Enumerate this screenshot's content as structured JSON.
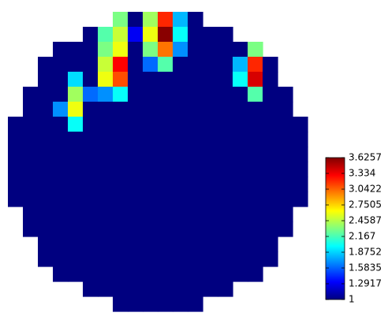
{
  "chart_data": {
    "type": "heatmap",
    "colormap": "jet",
    "z": [
      [
        null,
        null,
        null,
        null,
        null,
        null,
        null,
        2.3,
        1,
        2.4,
        3.2,
        1.8,
        1,
        null,
        null,
        null,
        null,
        null,
        null,
        null
      ],
      [
        null,
        null,
        null,
        null,
        null,
        1,
        2.2,
        2.5,
        1.3,
        2.6,
        3.6,
        2.0,
        1,
        1,
        1,
        null,
        null,
        null,
        null,
        null
      ],
      [
        null,
        null,
        null,
        1,
        1,
        1,
        2.3,
        2.6,
        1,
        2.3,
        3.0,
        1.7,
        1,
        1,
        1,
        1,
        2.3,
        null,
        null,
        null
      ],
      [
        null,
        null,
        1,
        1,
        1,
        1,
        2.5,
        3.3,
        1,
        1.6,
        2.2,
        1,
        1,
        1,
        1,
        1.8,
        3.2,
        1,
        null,
        null
      ],
      [
        null,
        null,
        1,
        1,
        1.9,
        1,
        2.6,
        3.1,
        1,
        1,
        1,
        1,
        1,
        1,
        1,
        2.0,
        3.4,
        1,
        null,
        null
      ],
      [
        null,
        1,
        1,
        1,
        2.4,
        1.6,
        1.7,
        2.0,
        1,
        1,
        1,
        1,
        1,
        1,
        1,
        1,
        2.2,
        1,
        1,
        null
      ],
      [
        null,
        1,
        1,
        1.7,
        2.6,
        1,
        1,
        1,
        1,
        1,
        1,
        1,
        1,
        1,
        1,
        1,
        1,
        1,
        1,
        null
      ],
      [
        1,
        1,
        1,
        1,
        2.0,
        1,
        1,
        1,
        1,
        1,
        1,
        1,
        1,
        1,
        1,
        1,
        1,
        1,
        1,
        1
      ],
      [
        1,
        1,
        1,
        1,
        1,
        1,
        1,
        1,
        1,
        1,
        1,
        1,
        1,
        1,
        1,
        1,
        1,
        1,
        1,
        1
      ],
      [
        1,
        1,
        1,
        1,
        1,
        1,
        1,
        1,
        1,
        1,
        1,
        1,
        1,
        1,
        1,
        1,
        1,
        1,
        1,
        1
      ],
      [
        1,
        1,
        1,
        1,
        1,
        1,
        1,
        1,
        1,
        1,
        1,
        1,
        1,
        1,
        1,
        1,
        1,
        1,
        1,
        1
      ],
      [
        1,
        1,
        1,
        1,
        1,
        1,
        1,
        1,
        1,
        1,
        1,
        1,
        1,
        1,
        1,
        1,
        1,
        1,
        1,
        1
      ],
      [
        1,
        1,
        1,
        1,
        1,
        1,
        1,
        1,
        1,
        1,
        1,
        1,
        1,
        1,
        1,
        1,
        1,
        1,
        1,
        1
      ],
      [
        null,
        1,
        1,
        1,
        1,
        1,
        1,
        1,
        1,
        1,
        1,
        1,
        1,
        1,
        1,
        1,
        1,
        1,
        1,
        null
      ],
      [
        null,
        1,
        1,
        1,
        1,
        1,
        1,
        1,
        1,
        1,
        1,
        1,
        1,
        1,
        1,
        1,
        1,
        1,
        1,
        null
      ],
      [
        null,
        null,
        1,
        1,
        1,
        1,
        1,
        1,
        1,
        1,
        1,
        1,
        1,
        1,
        1,
        1,
        1,
        1,
        null,
        null
      ],
      [
        null,
        null,
        1,
        1,
        1,
        1,
        1,
        1,
        1,
        1,
        1,
        1,
        1,
        1,
        1,
        1,
        1,
        1,
        null,
        null
      ],
      [
        null,
        null,
        null,
        1,
        1,
        1,
        1,
        1,
        1,
        1,
        1,
        1,
        1,
        1,
        1,
        1,
        1,
        null,
        null,
        null
      ],
      [
        null,
        null,
        null,
        null,
        null,
        1,
        1,
        1,
        1,
        1,
        1,
        1,
        1,
        1,
        1,
        null,
        null,
        null,
        null,
        null
      ],
      [
        null,
        null,
        null,
        null,
        null,
        null,
        null,
        1,
        1,
        1,
        1,
        1,
        1,
        null,
        null,
        null,
        null,
        null,
        null,
        null
      ]
    ],
    "clim": [
      1,
      3.6257
    ],
    "cticks": [
      1,
      1.2917,
      1.5835,
      1.8752,
      2.167,
      2.4587,
      2.7505,
      3.0422,
      3.334,
      3.6257
    ]
  }
}
